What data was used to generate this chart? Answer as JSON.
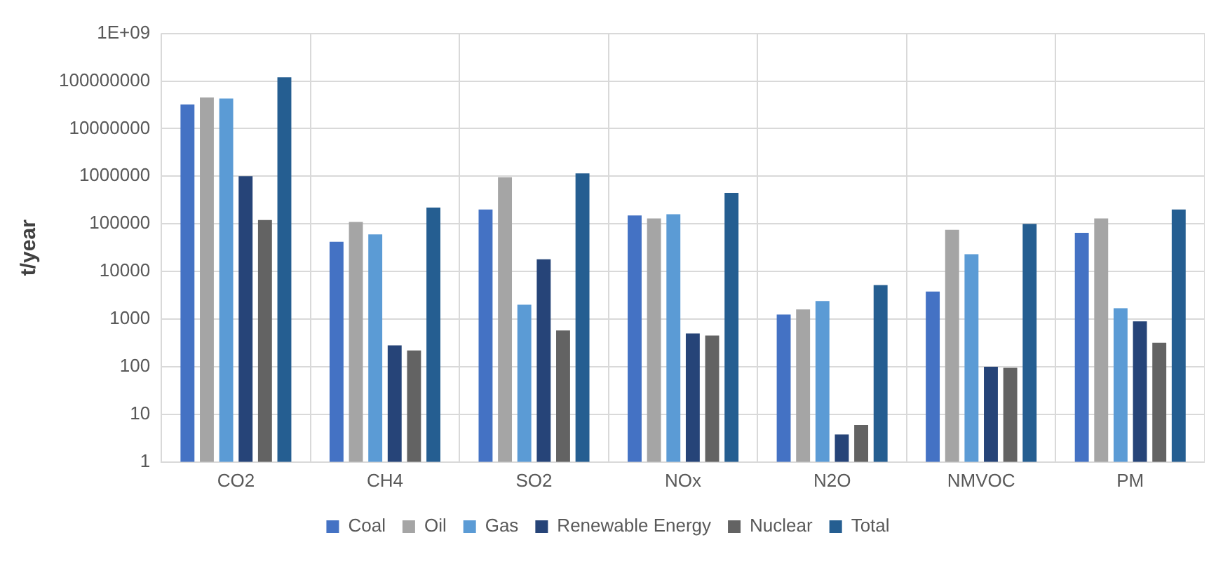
{
  "chart_data": {
    "type": "bar",
    "ylabel": "t/year",
    "categories": [
      "CO2",
      "CH4",
      "SO2",
      "NOx",
      "N2O",
      "NMVOC",
      "PM"
    ],
    "series": [
      {
        "name": "Coal",
        "color": "#4472c4",
        "values": [
          32000000,
          42000,
          200000,
          150000,
          1250,
          3800,
          65000
        ]
      },
      {
        "name": "Oil",
        "color": "#a5a5a5",
        "values": [
          45000000,
          110000,
          950000,
          130000,
          1600,
          75000,
          130000
        ]
      },
      {
        "name": "Gas",
        "color": "#5b9bd5",
        "values": [
          43000000,
          60000,
          2000,
          160000,
          2400,
          23000,
          1700
        ]
      },
      {
        "name": "Renewable Energy",
        "color": "#264478",
        "values": [
          1000000,
          280,
          18000,
          500,
          3.8,
          100,
          900
        ]
      },
      {
        "name": "Nuclear",
        "color": "#636363",
        "values": [
          120000,
          220,
          580,
          450,
          6,
          95,
          320
        ]
      },
      {
        "name": "Total",
        "color": "#255e91",
        "values": [
          120000000,
          220000,
          1150000,
          450000,
          5200,
          100000,
          200000
        ]
      }
    ],
    "log": "y",
    "ylim": [
      1,
      1000000000
    ],
    "yticks": [
      1,
      10,
      100,
      1000,
      10000,
      100000,
      1000000,
      10000000,
      100000000,
      {
        "value": 1000000000,
        "label": "1E+09"
      }
    ],
    "grid": true,
    "legend": "bottom"
  }
}
